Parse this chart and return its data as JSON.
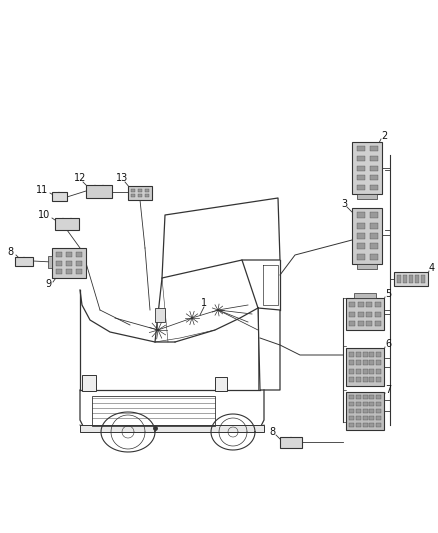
{
  "bg_color": "#ffffff",
  "line_color": "#333333",
  "label_color": "#111111",
  "connector_face": "#cccccc",
  "connector_pin": "#999999",
  "connector_dark": "#aaaaaa"
}
